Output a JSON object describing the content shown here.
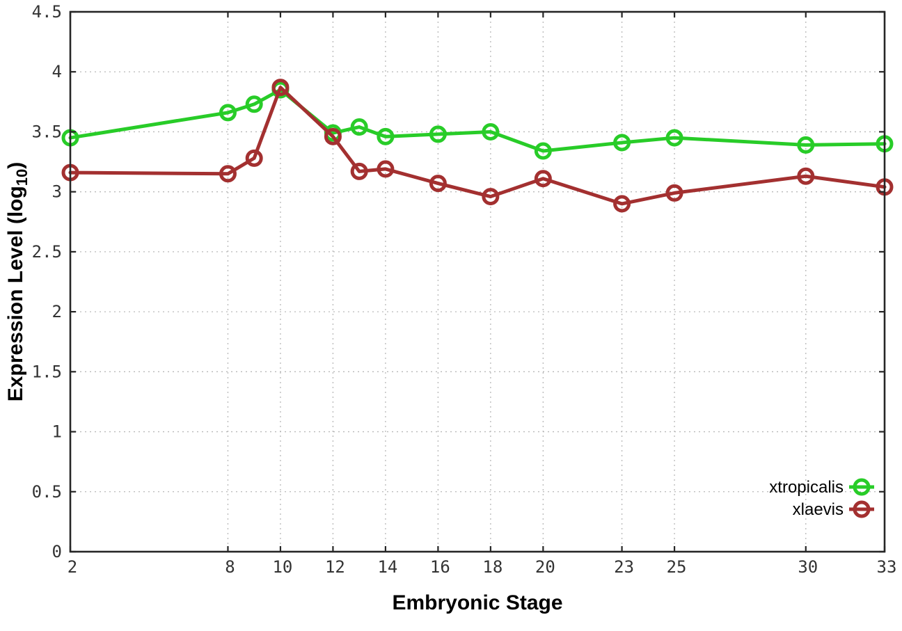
{
  "chart_data": {
    "type": "line",
    "title": "",
    "xlabel": "Embryonic Stage",
    "ylabel": "Expression Level (log10)",
    "ylabel_parts": {
      "prefix": "Expression Level (log",
      "sub": "10",
      "suffix": ")"
    },
    "xlim": [
      2,
      33
    ],
    "ylim": [
      0,
      4.5
    ],
    "x_ticks": [
      2,
      8,
      10,
      12,
      14,
      16,
      18,
      20,
      23,
      25,
      30,
      33
    ],
    "y_ticks": [
      0,
      0.5,
      1,
      1.5,
      2,
      2.5,
      3,
      3.5,
      4,
      4.5
    ],
    "grid": true,
    "grid_style": "dotted",
    "legend_position": "inside-bottom-right",
    "x": [
      2,
      8,
      9,
      10,
      12,
      13,
      14,
      16,
      18,
      20,
      23,
      25,
      30,
      33
    ],
    "series": [
      {
        "name": "xtropicalis",
        "color": "#28cc28",
        "values": [
          3.45,
          3.66,
          3.73,
          3.85,
          3.49,
          3.54,
          3.46,
          3.48,
          3.5,
          3.34,
          3.41,
          3.45,
          3.39,
          3.4
        ]
      },
      {
        "name": "xlaevis",
        "color": "#a33030",
        "values": [
          3.16,
          3.15,
          3.28,
          3.87,
          3.46,
          3.17,
          3.19,
          3.07,
          2.96,
          3.11,
          2.9,
          2.99,
          3.13,
          3.04
        ]
      }
    ],
    "colors": {
      "background": "#ffffff",
      "grid": "#b8b8b8",
      "border": "#262626",
      "tick_label": "#333333",
      "axis_label": "#000000"
    },
    "marker": "open-circle"
  }
}
